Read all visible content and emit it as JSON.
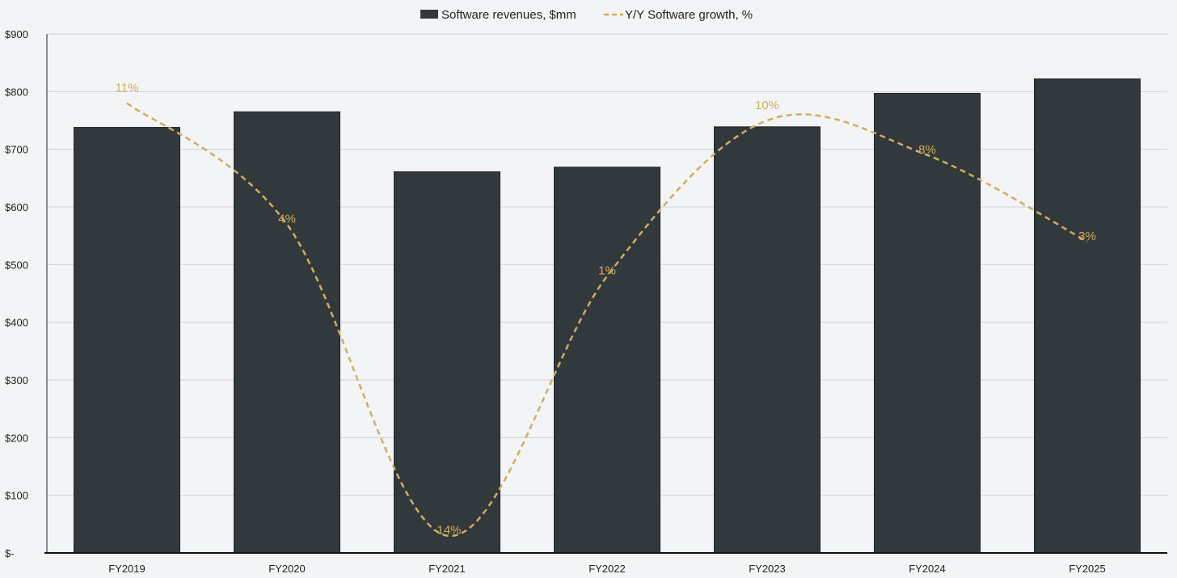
{
  "chart_data": {
    "type": "bar",
    "title": "",
    "xlabel": "",
    "ylabel": "",
    "categories": [
      "FY2019",
      "FY2020",
      "FY2021",
      "FY2022",
      "FY2023",
      "FY2024",
      "FY2025"
    ],
    "ylim": [
      0,
      900
    ],
    "y_ticks": [
      0,
      100,
      200,
      300,
      400,
      500,
      600,
      700,
      800,
      900
    ],
    "y_tick_labels": [
      "$-",
      "$100",
      "$200",
      "$300",
      "$400",
      "$500",
      "$600",
      "$700",
      "$800",
      "$900"
    ],
    "grid": true,
    "legend_position": "top-center",
    "series": [
      {
        "name": "Software revenues, $mm",
        "type": "bar",
        "color": "#32393c",
        "values": [
          738,
          765,
          661,
          669,
          739,
          797,
          822
        ]
      },
      {
        "name": "Y/Y Software growth, %",
        "type": "line",
        "style": "dashed",
        "smooth": true,
        "axis": "secondary",
        "color": "#d1ad5f",
        "ylim_secondary": [
          -15,
          15
        ],
        "values": [
          11,
          4,
          -14,
          1,
          10,
          8,
          3
        ],
        "data_labels": [
          "11%",
          "4%",
          "-14%",
          "1%",
          "10%",
          "8%",
          "3%"
        ]
      }
    ]
  }
}
